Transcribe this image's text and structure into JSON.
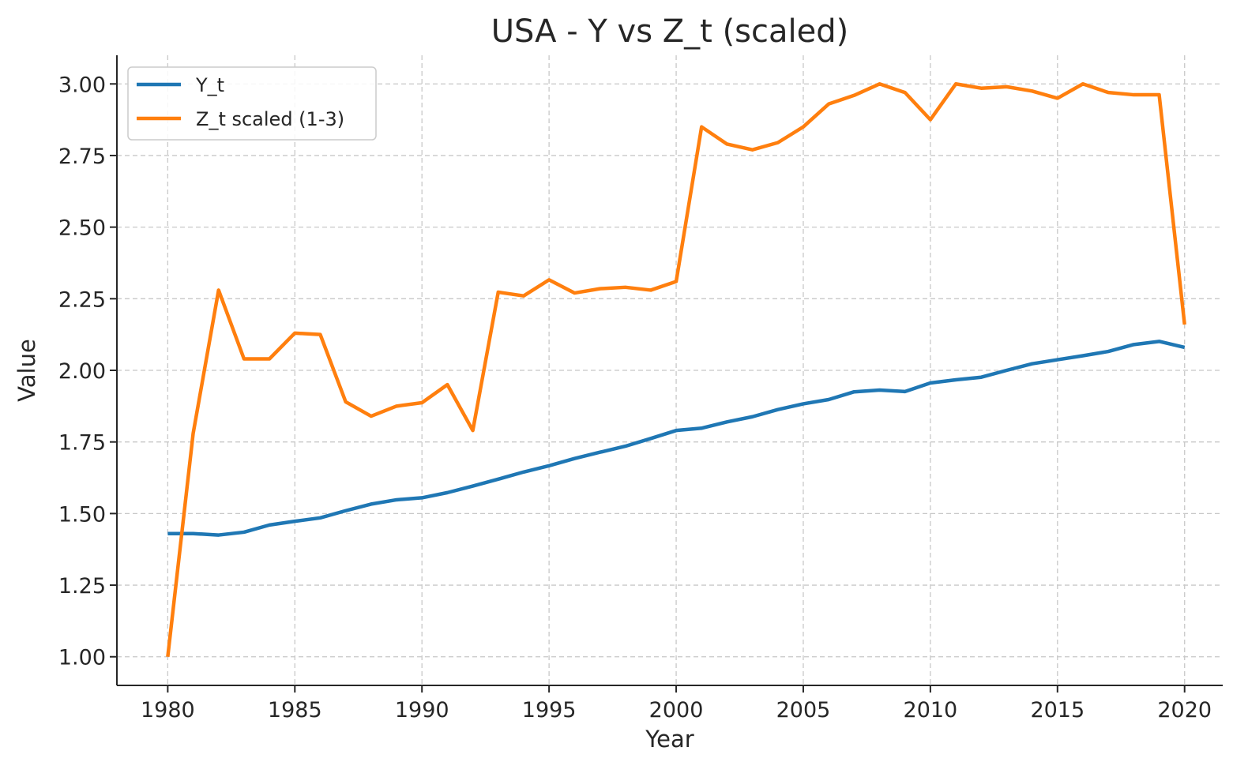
{
  "chart_data": {
    "type": "line",
    "title": "USA - Y vs Z_t (scaled)",
    "xlabel": "Year",
    "ylabel": "Value",
    "xlim": [
      1978,
      2021.5
    ],
    "ylim": [
      0.9,
      3.1
    ],
    "x_ticks": [
      1980,
      1985,
      1990,
      1995,
      2000,
      2005,
      2010,
      2015,
      2020
    ],
    "y_ticks": [
      "1.00",
      "1.25",
      "1.50",
      "1.75",
      "2.00",
      "2.25",
      "2.50",
      "2.75",
      "3.00"
    ],
    "grid": true,
    "legend_position": "top-left",
    "x": [
      1980,
      1981,
      1982,
      1983,
      1984,
      1985,
      1986,
      1987,
      1988,
      1989,
      1990,
      1991,
      1992,
      1993,
      1994,
      1995,
      1996,
      1997,
      1998,
      1999,
      2000,
      2001,
      2002,
      2003,
      2004,
      2005,
      2006,
      2007,
      2008,
      2009,
      2010,
      2011,
      2012,
      2013,
      2014,
      2015,
      2016,
      2017,
      2018,
      2019,
      2020
    ],
    "series": [
      {
        "name": "Y_t",
        "color": "#1f77b4",
        "values": [
          1.43,
          1.43,
          1.425,
          1.435,
          1.46,
          1.473,
          1.485,
          1.51,
          1.533,
          1.548,
          1.555,
          1.573,
          1.596,
          1.62,
          1.645,
          1.667,
          1.692,
          1.714,
          1.735,
          1.762,
          1.79,
          1.798,
          1.82,
          1.838,
          1.863,
          1.883,
          1.898,
          1.925,
          1.931,
          1.926,
          1.956,
          1.967,
          1.976,
          2.0,
          2.023,
          2.037,
          2.051,
          2.066,
          2.09,
          2.101,
          2.08
        ]
      },
      {
        "name": "Z_t scaled (1-3)",
        "color": "#ff7f0e",
        "values": [
          1.0,
          1.78,
          2.28,
          2.04,
          2.04,
          2.13,
          2.125,
          1.89,
          1.84,
          1.875,
          1.887,
          1.95,
          1.79,
          2.273,
          2.26,
          2.316,
          2.27,
          2.285,
          2.29,
          2.28,
          2.31,
          2.85,
          2.79,
          2.77,
          2.795,
          2.85,
          2.93,
          2.96,
          3.0,
          2.97,
          2.875,
          3.0,
          2.985,
          2.99,
          2.975,
          2.95,
          3.0,
          2.97,
          2.962,
          2.962,
          2.16
        ]
      }
    ]
  }
}
